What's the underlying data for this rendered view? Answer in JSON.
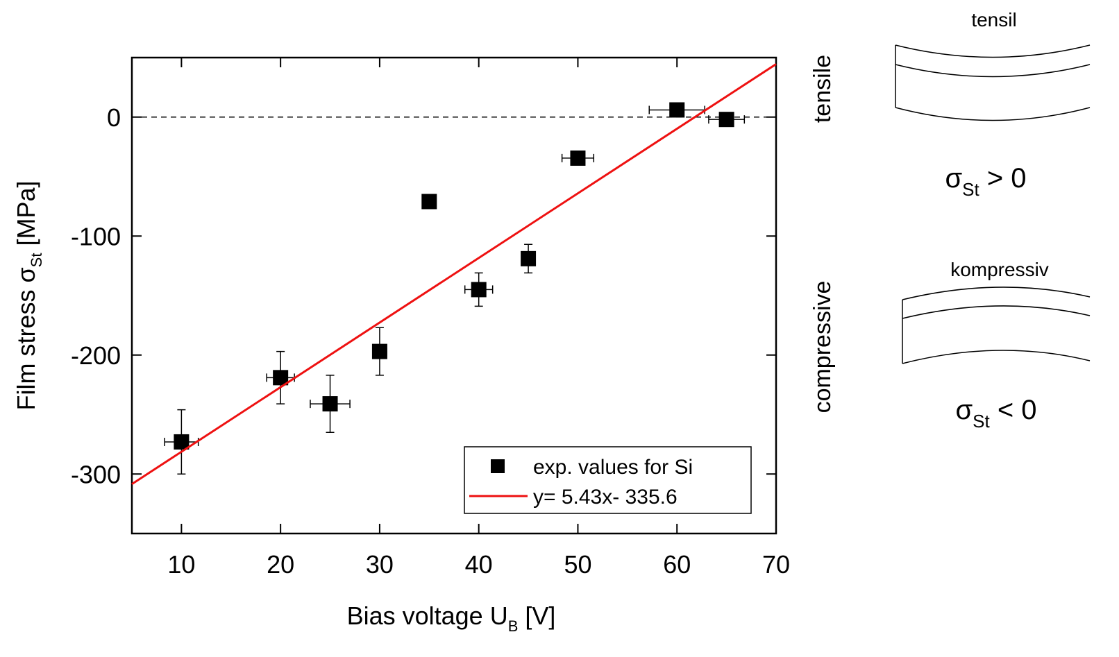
{
  "chart_data": {
    "type": "scatter",
    "xlabel": [
      "Bias voltage U",
      "B",
      " [V]"
    ],
    "ylabel": [
      "Film stress σ",
      "St",
      " [MPa]"
    ],
    "xlim": [
      5,
      70
    ],
    "ylim": [
      -350,
      50
    ],
    "xticks": [
      10,
      20,
      30,
      40,
      50,
      60,
      70
    ],
    "yticks": [
      -300,
      -200,
      -100,
      0
    ],
    "hline": 0,
    "legend": "lower right",
    "series": [
      {
        "type": "scatter",
        "name": "exp. values for Si",
        "color": "#000000",
        "x": [
          10,
          20,
          25,
          30,
          35,
          40,
          45,
          50,
          60,
          65
        ],
        "values": [
          -273,
          -219,
          -241,
          -197,
          -71,
          -145,
          -119,
          -34.5,
          6,
          -2
        ],
        "xerr": [
          1.7,
          1.4,
          2,
          0.7,
          0.5,
          1.4,
          0.6,
          1.6,
          2.8,
          1.8
        ],
        "yerr": [
          27,
          22,
          24,
          20,
          4,
          14,
          12,
          2,
          2,
          2
        ]
      },
      {
        "type": "line",
        "name": "y= 5.43x- 335.6",
        "color": "#ee1111",
        "x": [
          5,
          70
        ],
        "values": [
          -308.45,
          44.5
        ]
      }
    ],
    "annotations": {
      "tensile_side": "tensile",
      "compressive_side": "compressive",
      "tensile_title": "tensil",
      "compressive_title": "kompressiv",
      "tensile_condition": [
        "σ",
        "St",
        " > 0"
      ],
      "compressive_condition": [
        "σ",
        "St",
        " < 0"
      ]
    }
  }
}
